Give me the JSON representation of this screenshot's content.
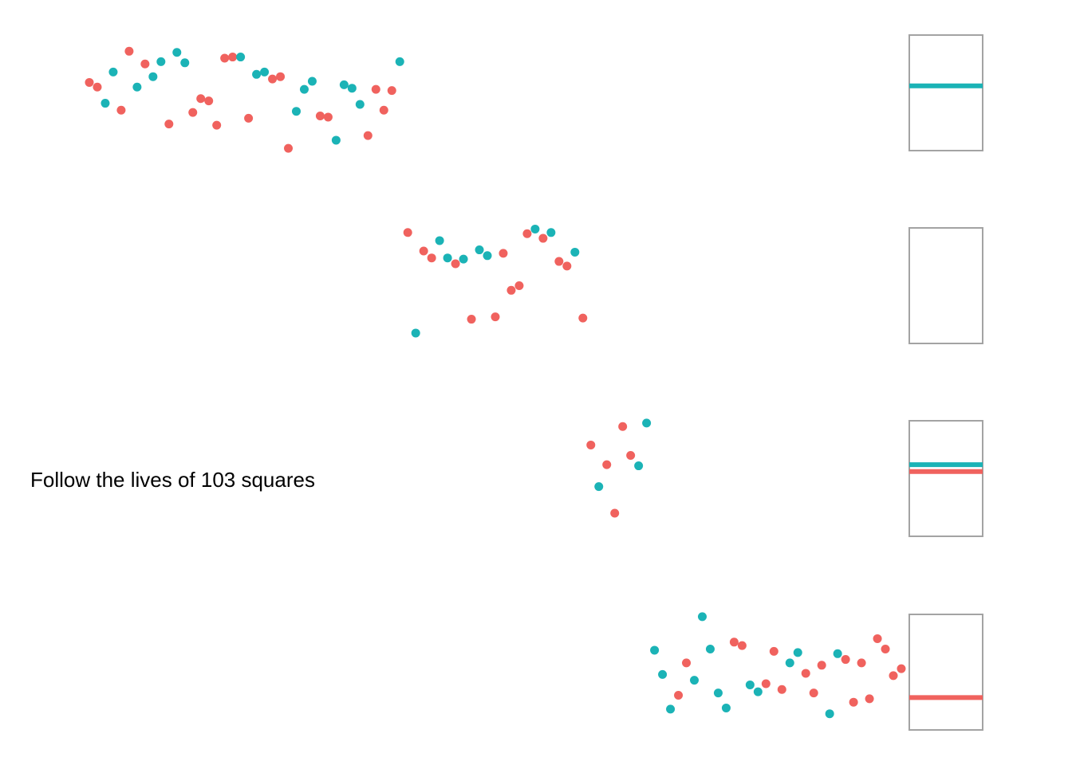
{
  "chart_data": {
    "type": "scatter",
    "title": "Follow the lives of 103 squares",
    "xlabel": "",
    "ylabel": "",
    "grid": false,
    "colors": {
      "red": "#F0625E",
      "teal": "#1BB3B6",
      "frame": "#A3A3A3"
    },
    "series": [
      {
        "name": "red",
        "points": [
          [
            1.0,
            0.59
          ],
          [
            2.0,
            0.55
          ],
          [
            5.0,
            0.35
          ],
          [
            6.0,
            0.86
          ],
          [
            8.0,
            0.75
          ],
          [
            11.0,
            0.23
          ],
          [
            14.0,
            0.33
          ],
          [
            15.0,
            0.45
          ],
          [
            16.0,
            0.43
          ],
          [
            17.0,
            0.22
          ],
          [
            18.0,
            0.8
          ],
          [
            19.0,
            0.81
          ],
          [
            21.0,
            0.28
          ],
          [
            24.0,
            0.62
          ],
          [
            25.0,
            0.64
          ],
          [
            26.0,
            0.02
          ],
          [
            30.0,
            0.3
          ],
          [
            31.0,
            0.29
          ],
          [
            36.0,
            0.13
          ],
          [
            37.0,
            0.53
          ],
          [
            38.0,
            0.35
          ],
          [
            39.0,
            0.52
          ],
          [
            41.0,
            0.96
          ],
          [
            43.0,
            0.8
          ],
          [
            44.0,
            0.74
          ],
          [
            47.0,
            0.69
          ],
          [
            49.0,
            0.21
          ],
          [
            52.0,
            0.23
          ],
          [
            53.0,
            0.78
          ],
          [
            54.0,
            0.46
          ],
          [
            55.0,
            0.5
          ],
          [
            56.0,
            0.95
          ],
          [
            58.0,
            0.91
          ],
          [
            60.0,
            0.71
          ],
          [
            61.0,
            0.67
          ],
          [
            63.0,
            0.22
          ],
          [
            64.0,
            0.79
          ],
          [
            66.0,
            0.62
          ],
          [
            67.0,
            0.2
          ],
          [
            68.0,
            0.95
          ],
          [
            69.0,
            0.7
          ],
          [
            75.0,
            0.3
          ],
          [
            76.0,
            0.58
          ],
          [
            82.0,
            0.76
          ],
          [
            83.0,
            0.73
          ],
          [
            86.0,
            0.4
          ],
          [
            87.0,
            0.68
          ],
          [
            88.0,
            0.35
          ],
          [
            91.0,
            0.49
          ],
          [
            92.0,
            0.32
          ],
          [
            93.0,
            0.56
          ],
          [
            96.0,
            0.61
          ],
          [
            97.0,
            0.24
          ],
          [
            98.0,
            0.58
          ],
          [
            99.0,
            0.27
          ],
          [
            100.0,
            0.79
          ],
          [
            101.0,
            0.7
          ],
          [
            102.0,
            0.47
          ],
          [
            103.0,
            0.53
          ]
        ]
      },
      {
        "name": "teal",
        "points": [
          [
            3.0,
            0.41
          ],
          [
            4.0,
            0.68
          ],
          [
            7.0,
            0.55
          ],
          [
            9.0,
            0.64
          ],
          [
            10.0,
            0.77
          ],
          [
            12.0,
            0.85
          ],
          [
            13.0,
            0.76
          ],
          [
            20.0,
            0.81
          ],
          [
            22.0,
            0.66
          ],
          [
            23.0,
            0.68
          ],
          [
            27.0,
            0.34
          ],
          [
            28.0,
            0.53
          ],
          [
            29.0,
            0.6
          ],
          [
            32.0,
            0.09
          ],
          [
            33.0,
            0.57
          ],
          [
            34.0,
            0.54
          ],
          [
            35.0,
            0.4
          ],
          [
            40.0,
            0.77
          ],
          [
            42.0,
            0.09
          ],
          [
            45.0,
            0.89
          ],
          [
            46.0,
            0.74
          ],
          [
            48.0,
            0.73
          ],
          [
            50.0,
            0.81
          ],
          [
            51.0,
            0.76
          ],
          [
            57.0,
            0.99
          ],
          [
            59.0,
            0.96
          ],
          [
            62.0,
            0.79
          ],
          [
            65.0,
            0.43
          ],
          [
            70.0,
            0.61
          ],
          [
            71.0,
            0.98
          ],
          [
            72.0,
            0.69
          ],
          [
            73.0,
            0.48
          ],
          [
            74.0,
            0.18
          ],
          [
            77.0,
            0.43
          ],
          [
            78.0,
            0.98
          ],
          [
            79.0,
            0.7
          ],
          [
            80.0,
            0.32
          ],
          [
            81.0,
            0.19
          ],
          [
            84.0,
            0.39
          ],
          [
            85.0,
            0.33
          ],
          [
            89.0,
            0.58
          ],
          [
            90.0,
            0.67
          ],
          [
            94.0,
            0.14
          ],
          [
            95.0,
            0.66
          ]
        ]
      }
    ],
    "lanes": [
      {
        "name": "lane-1",
        "xmin": 0,
        "xmax": 103,
        "ylim": [
          0,
          1
        ]
      },
      {
        "name": "lane-2",
        "xmin": 41,
        "xmax": 103,
        "ylim": [
          0,
          1
        ]
      },
      {
        "name": "lane-3",
        "xmin": 50,
        "xmax": 103,
        "ylim": [
          0,
          1
        ]
      },
      {
        "name": "lane-4",
        "xmin": 69,
        "xmax": 103,
        "ylim": [
          0,
          1
        ]
      }
    ],
    "lane_membership": [
      [
        1,
        40
      ],
      [
        41,
        63
      ],
      [
        64,
        71
      ],
      [
        72,
        103
      ]
    ],
    "summary_panels": [
      {
        "name": "panel-1",
        "teal_level": 0.56,
        "red_level": null
      },
      {
        "name": "panel-2",
        "teal_level": null,
        "red_level": null
      },
      {
        "name": "panel-3",
        "teal_level": 0.62,
        "red_level": 0.56
      },
      {
        "name": "panel-4",
        "teal_level": null,
        "red_level": 0.28
      }
    ]
  },
  "caption": "Follow the lives of 103 squares"
}
